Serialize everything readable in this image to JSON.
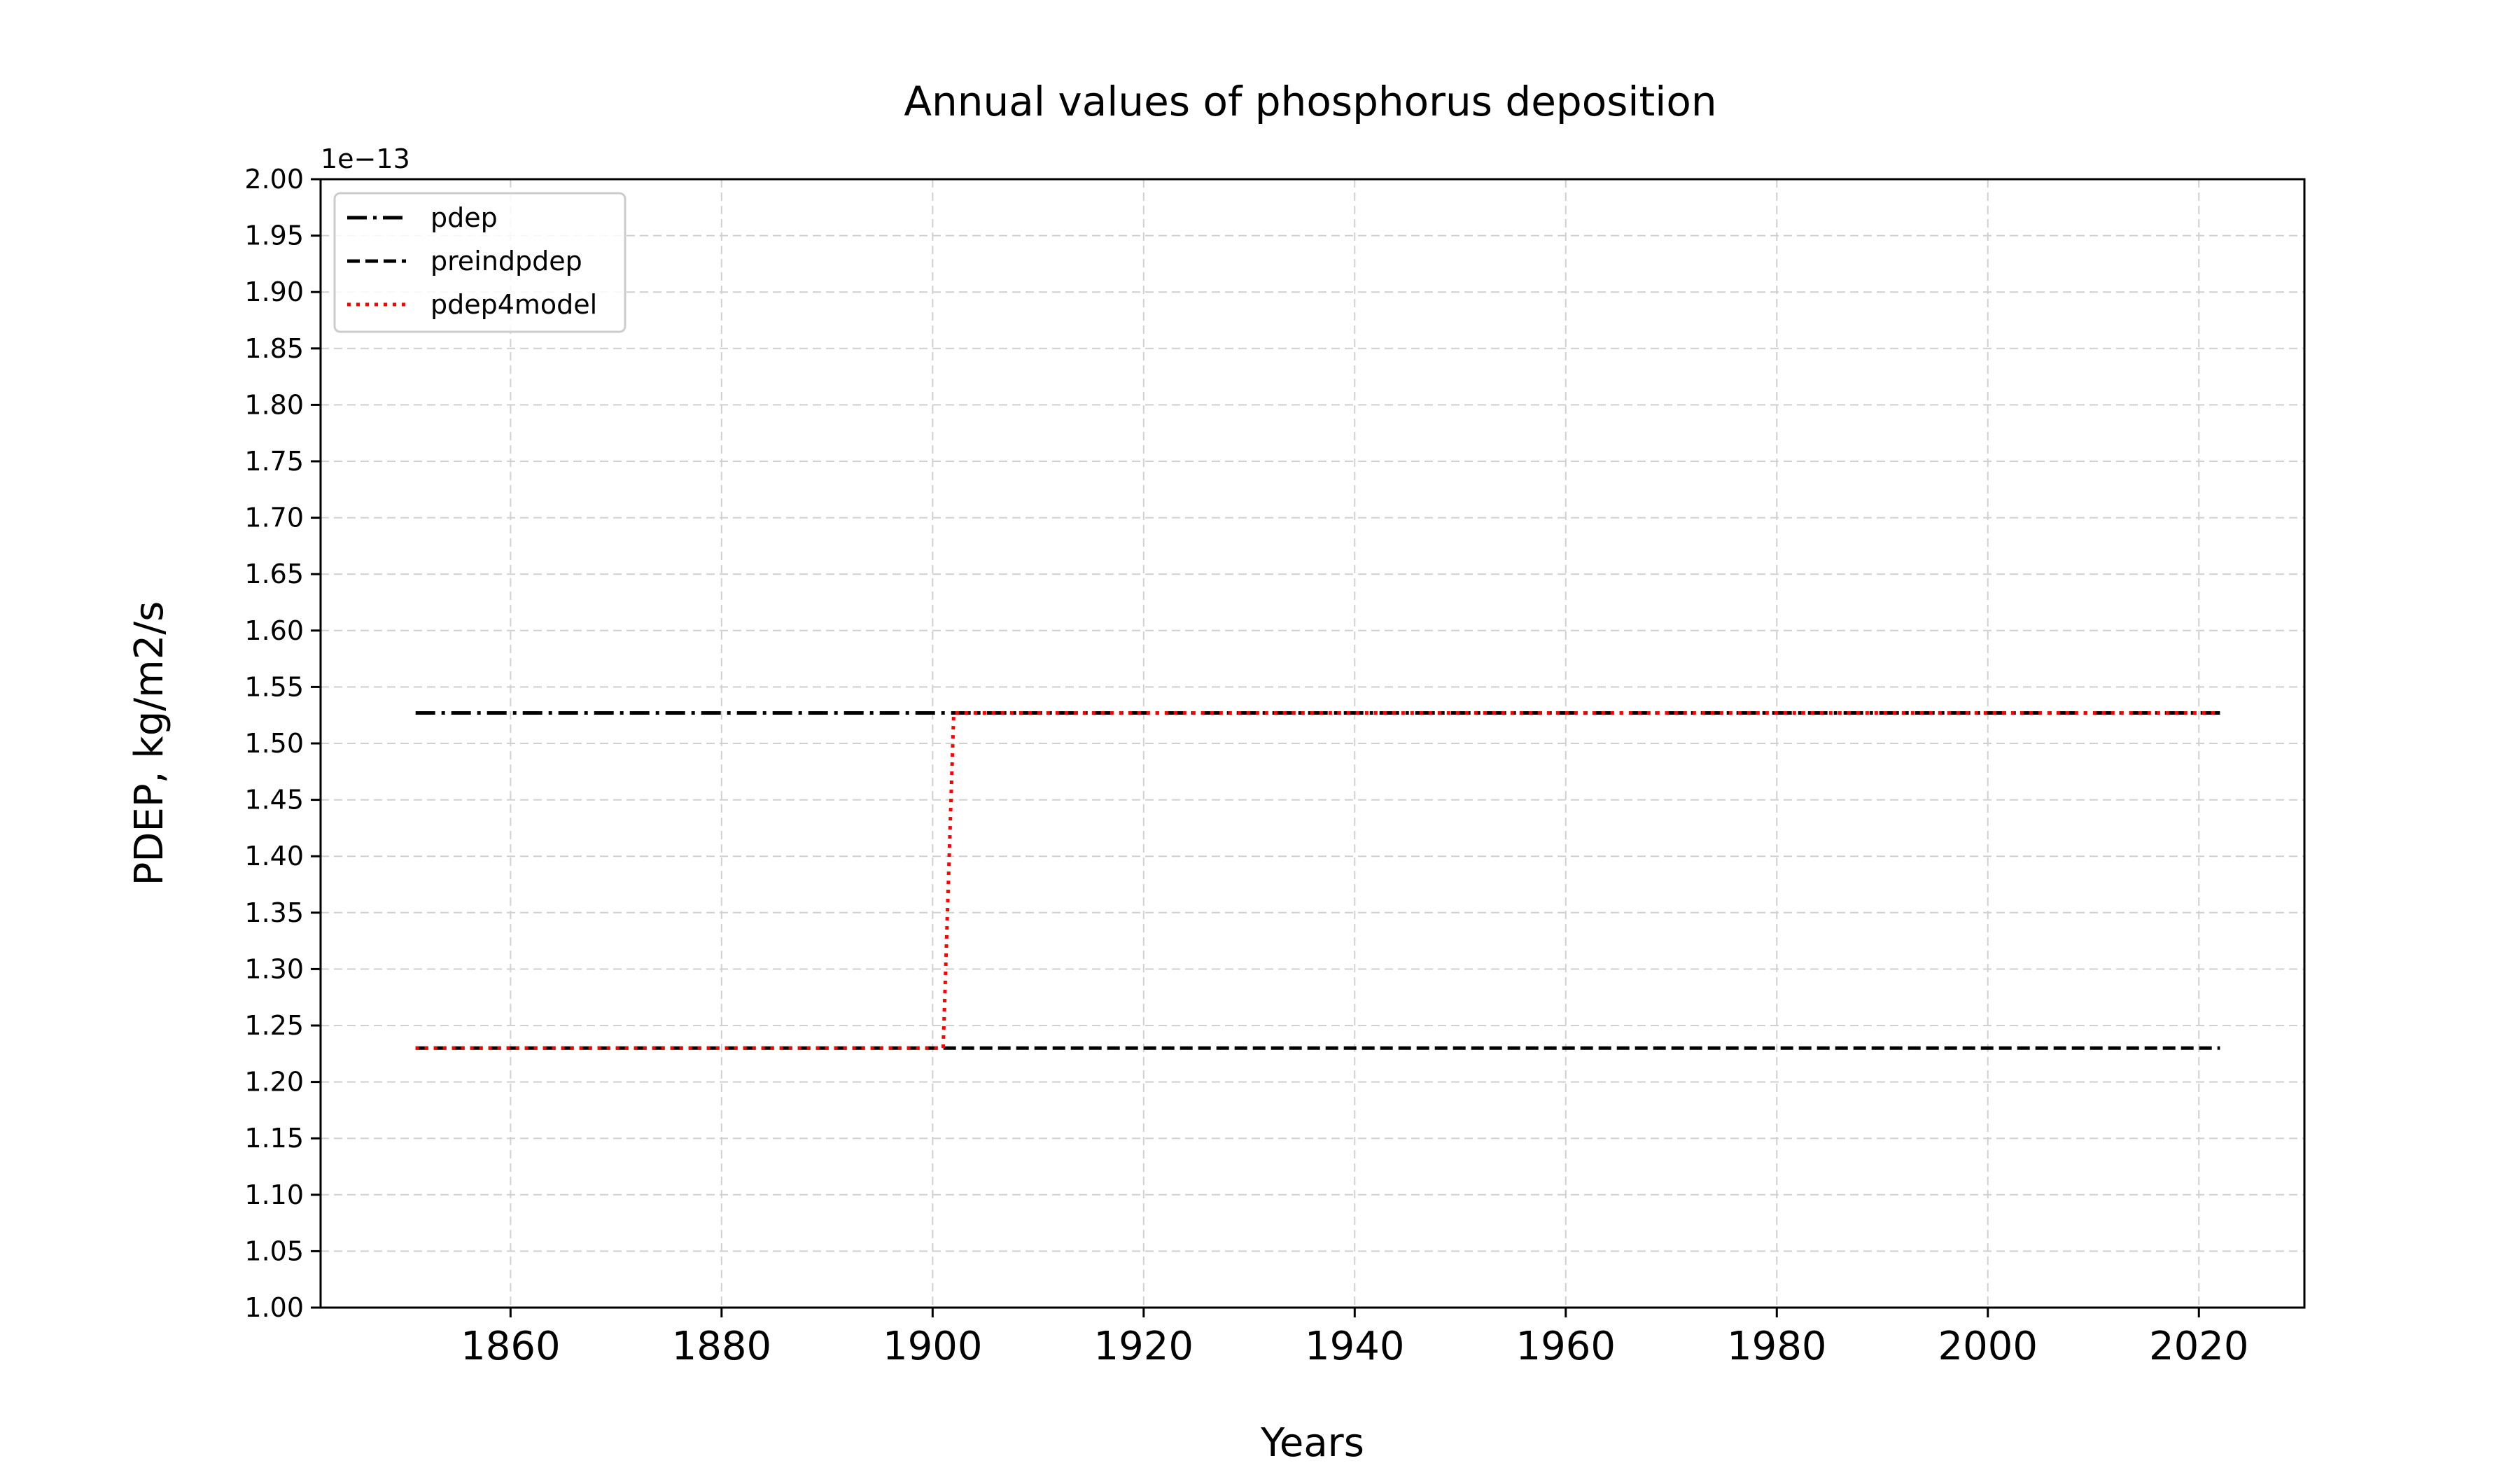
{
  "chart_data": {
    "type": "line",
    "title": "Annual values of phosphorus deposition",
    "xlabel": "Years",
    "ylabel": "PDEP, kg/m2/s",
    "y_offset_label": "1e−13",
    "y_scale_factor": 1e-13,
    "xlim": [
      1842,
      2030
    ],
    "ylim": [
      1.0,
      2.0
    ],
    "x_ticks": [
      1860,
      1880,
      1900,
      1920,
      1940,
      1960,
      1980,
      2000,
      2020
    ],
    "y_ticks": [
      1.0,
      1.05,
      1.1,
      1.15,
      1.2,
      1.25,
      1.3,
      1.35,
      1.4,
      1.45,
      1.5,
      1.55,
      1.6,
      1.65,
      1.7,
      1.75,
      1.8,
      1.85,
      1.9,
      1.95,
      2.0
    ],
    "grid": true,
    "legend_position": "top-left",
    "series": [
      {
        "name": "pdep",
        "color": "#000000",
        "linestyle": "dashdot",
        "points": [
          [
            1851,
            1.527
          ],
          [
            2022,
            1.527
          ]
        ]
      },
      {
        "name": "preindpdep",
        "color": "#000000",
        "linestyle": "dashed",
        "points": [
          [
            1851,
            1.23
          ],
          [
            2022,
            1.23
          ]
        ]
      },
      {
        "name": "pdep4model",
        "color": "#ff0000",
        "linestyle": "dotted",
        "points": [
          [
            1851,
            1.23
          ],
          [
            1901,
            1.23
          ],
          [
            1902,
            1.527
          ],
          [
            2022,
            1.527
          ]
        ]
      }
    ]
  }
}
